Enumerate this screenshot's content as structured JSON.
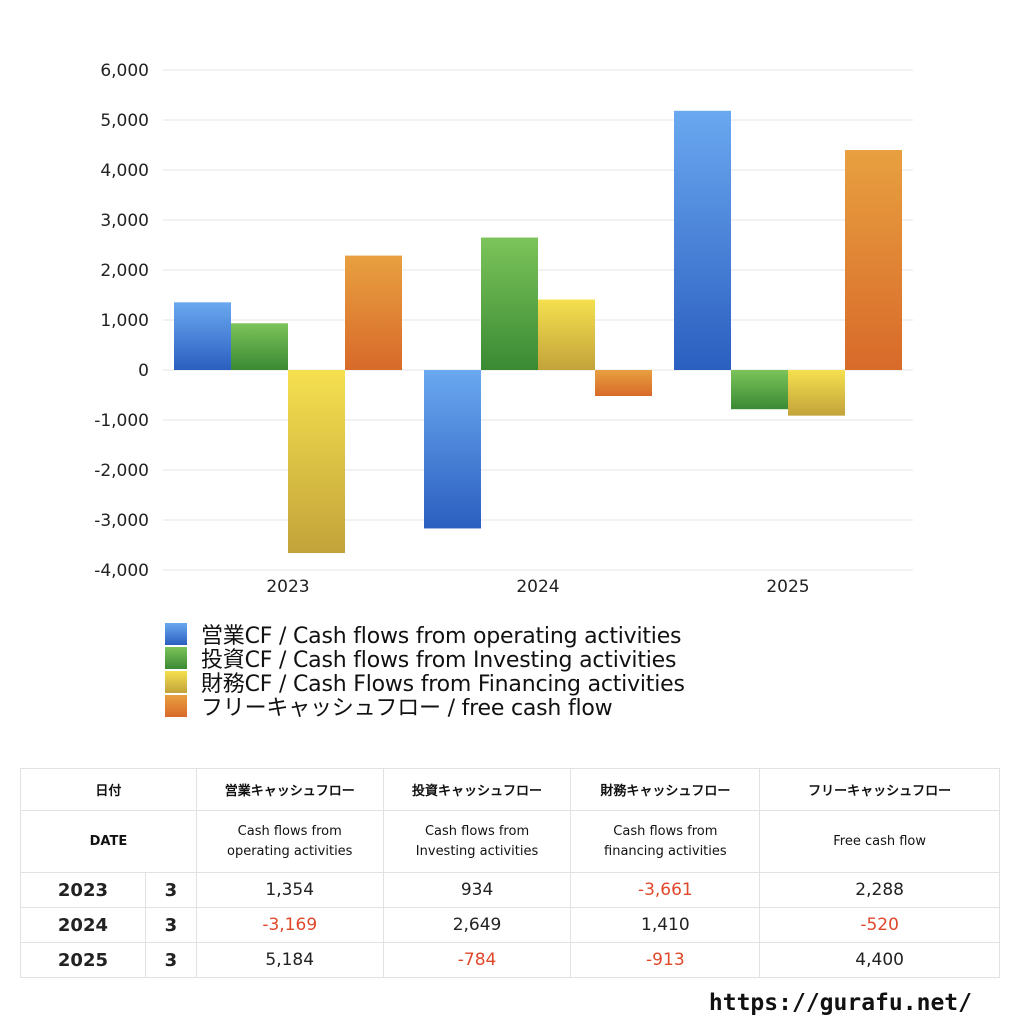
{
  "chart_data": {
    "type": "bar",
    "categories": [
      "2023",
      "2024",
      "2025"
    ],
    "series": [
      {
        "name": "営業CF / Cash flows from operating activities",
        "values": [
          1354,
          -3169,
          5184
        ],
        "color_top": "#6aa8f0",
        "color_bottom": "#2b5fc0"
      },
      {
        "name": "投資CF / Cash flows from Investing activities",
        "values": [
          934,
          2649,
          -784
        ],
        "color_top": "#7cc45a",
        "color_bottom": "#3a8a34"
      },
      {
        "name": "財務CF / Cash Flows from Financing activities",
        "values": [
          -3661,
          1410,
          -913
        ],
        "color_top": "#f5e04f",
        "color_bottom": "#c2a33a"
      },
      {
        "name": "フリーキャッシュフロー / free cash flow",
        "values": [
          2288,
          -520,
          4400
        ],
        "color_top": "#e8a040",
        "color_bottom": "#d86a2a"
      }
    ],
    "ylim": [
      -4000,
      6000
    ],
    "yticks": [
      6000,
      5000,
      4000,
      3000,
      2000,
      1000,
      0,
      -1000,
      -2000,
      -3000,
      -4000
    ],
    "ytick_labels": [
      "6,000",
      "5,000",
      "4,000",
      "3,000",
      "2,000",
      "1,000",
      "0",
      "-1,000",
      "-2,000",
      "-3,000",
      "-4,000"
    ],
    "grid": true,
    "legend_position": "bottom"
  },
  "table": {
    "header_ja": [
      "日付",
      "営業キャッシュフロー",
      "投資キャッシュフロー",
      "財務キャッシュフロー",
      "フリーキャッシュフロー"
    ],
    "header_en": [
      "DATE",
      "Cash flows from operating activities",
      "Cash flows from Investing activities",
      "Cash flows from financing activities",
      "Free cash flow"
    ],
    "header_en_lines": [
      [
        "DATE"
      ],
      [
        "Cash flows from",
        "operating activities"
      ],
      [
        "Cash flows from",
        "Investing activities"
      ],
      [
        "Cash flows from",
        "financing activities"
      ],
      [
        "Free cash flow"
      ]
    ],
    "rows": [
      {
        "year": "2023",
        "month": "3",
        "values": [
          "1,354",
          "934",
          "-3,661",
          "2,288"
        ]
      },
      {
        "year": "2024",
        "month": "3",
        "values": [
          "-3,169",
          "2,649",
          "1,410",
          "-520"
        ]
      },
      {
        "year": "2025",
        "month": "3",
        "values": [
          "5,184",
          "-784",
          "-913",
          "4,400"
        ]
      }
    ]
  },
  "site_url": "https://gurafu.net/"
}
